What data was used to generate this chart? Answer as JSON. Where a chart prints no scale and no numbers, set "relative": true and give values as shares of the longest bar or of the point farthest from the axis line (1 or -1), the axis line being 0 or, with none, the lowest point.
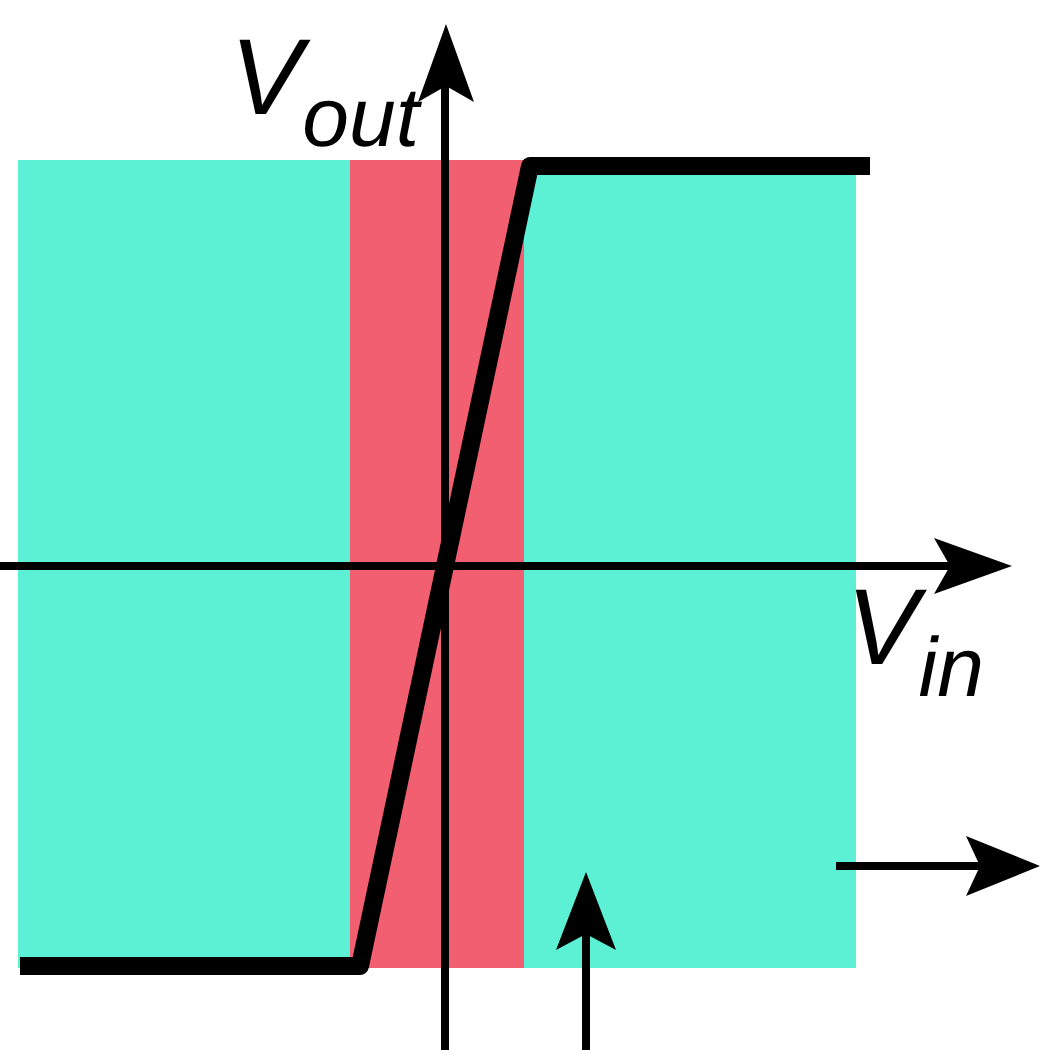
{
  "chart_data": {
    "type": "line",
    "xlabel": "V$_{in}$",
    "ylabel": "V$_{out}$",
    "categories": [
      null,
      null,
      null,
      null,
      null,
      null,
      null,
      null,
      null,
      null,
      null
    ],
    "relative": true,
    "series": [
      {
        "color": "#000000",
        "values": [
          -1,
          -1,
          -1,
          -1,
          -1,
          0,
          1,
          1,
          1,
          1,
          1
        ]
      }
    ],
    "marker": "none",
    "line_style": "solid"
  }
}
